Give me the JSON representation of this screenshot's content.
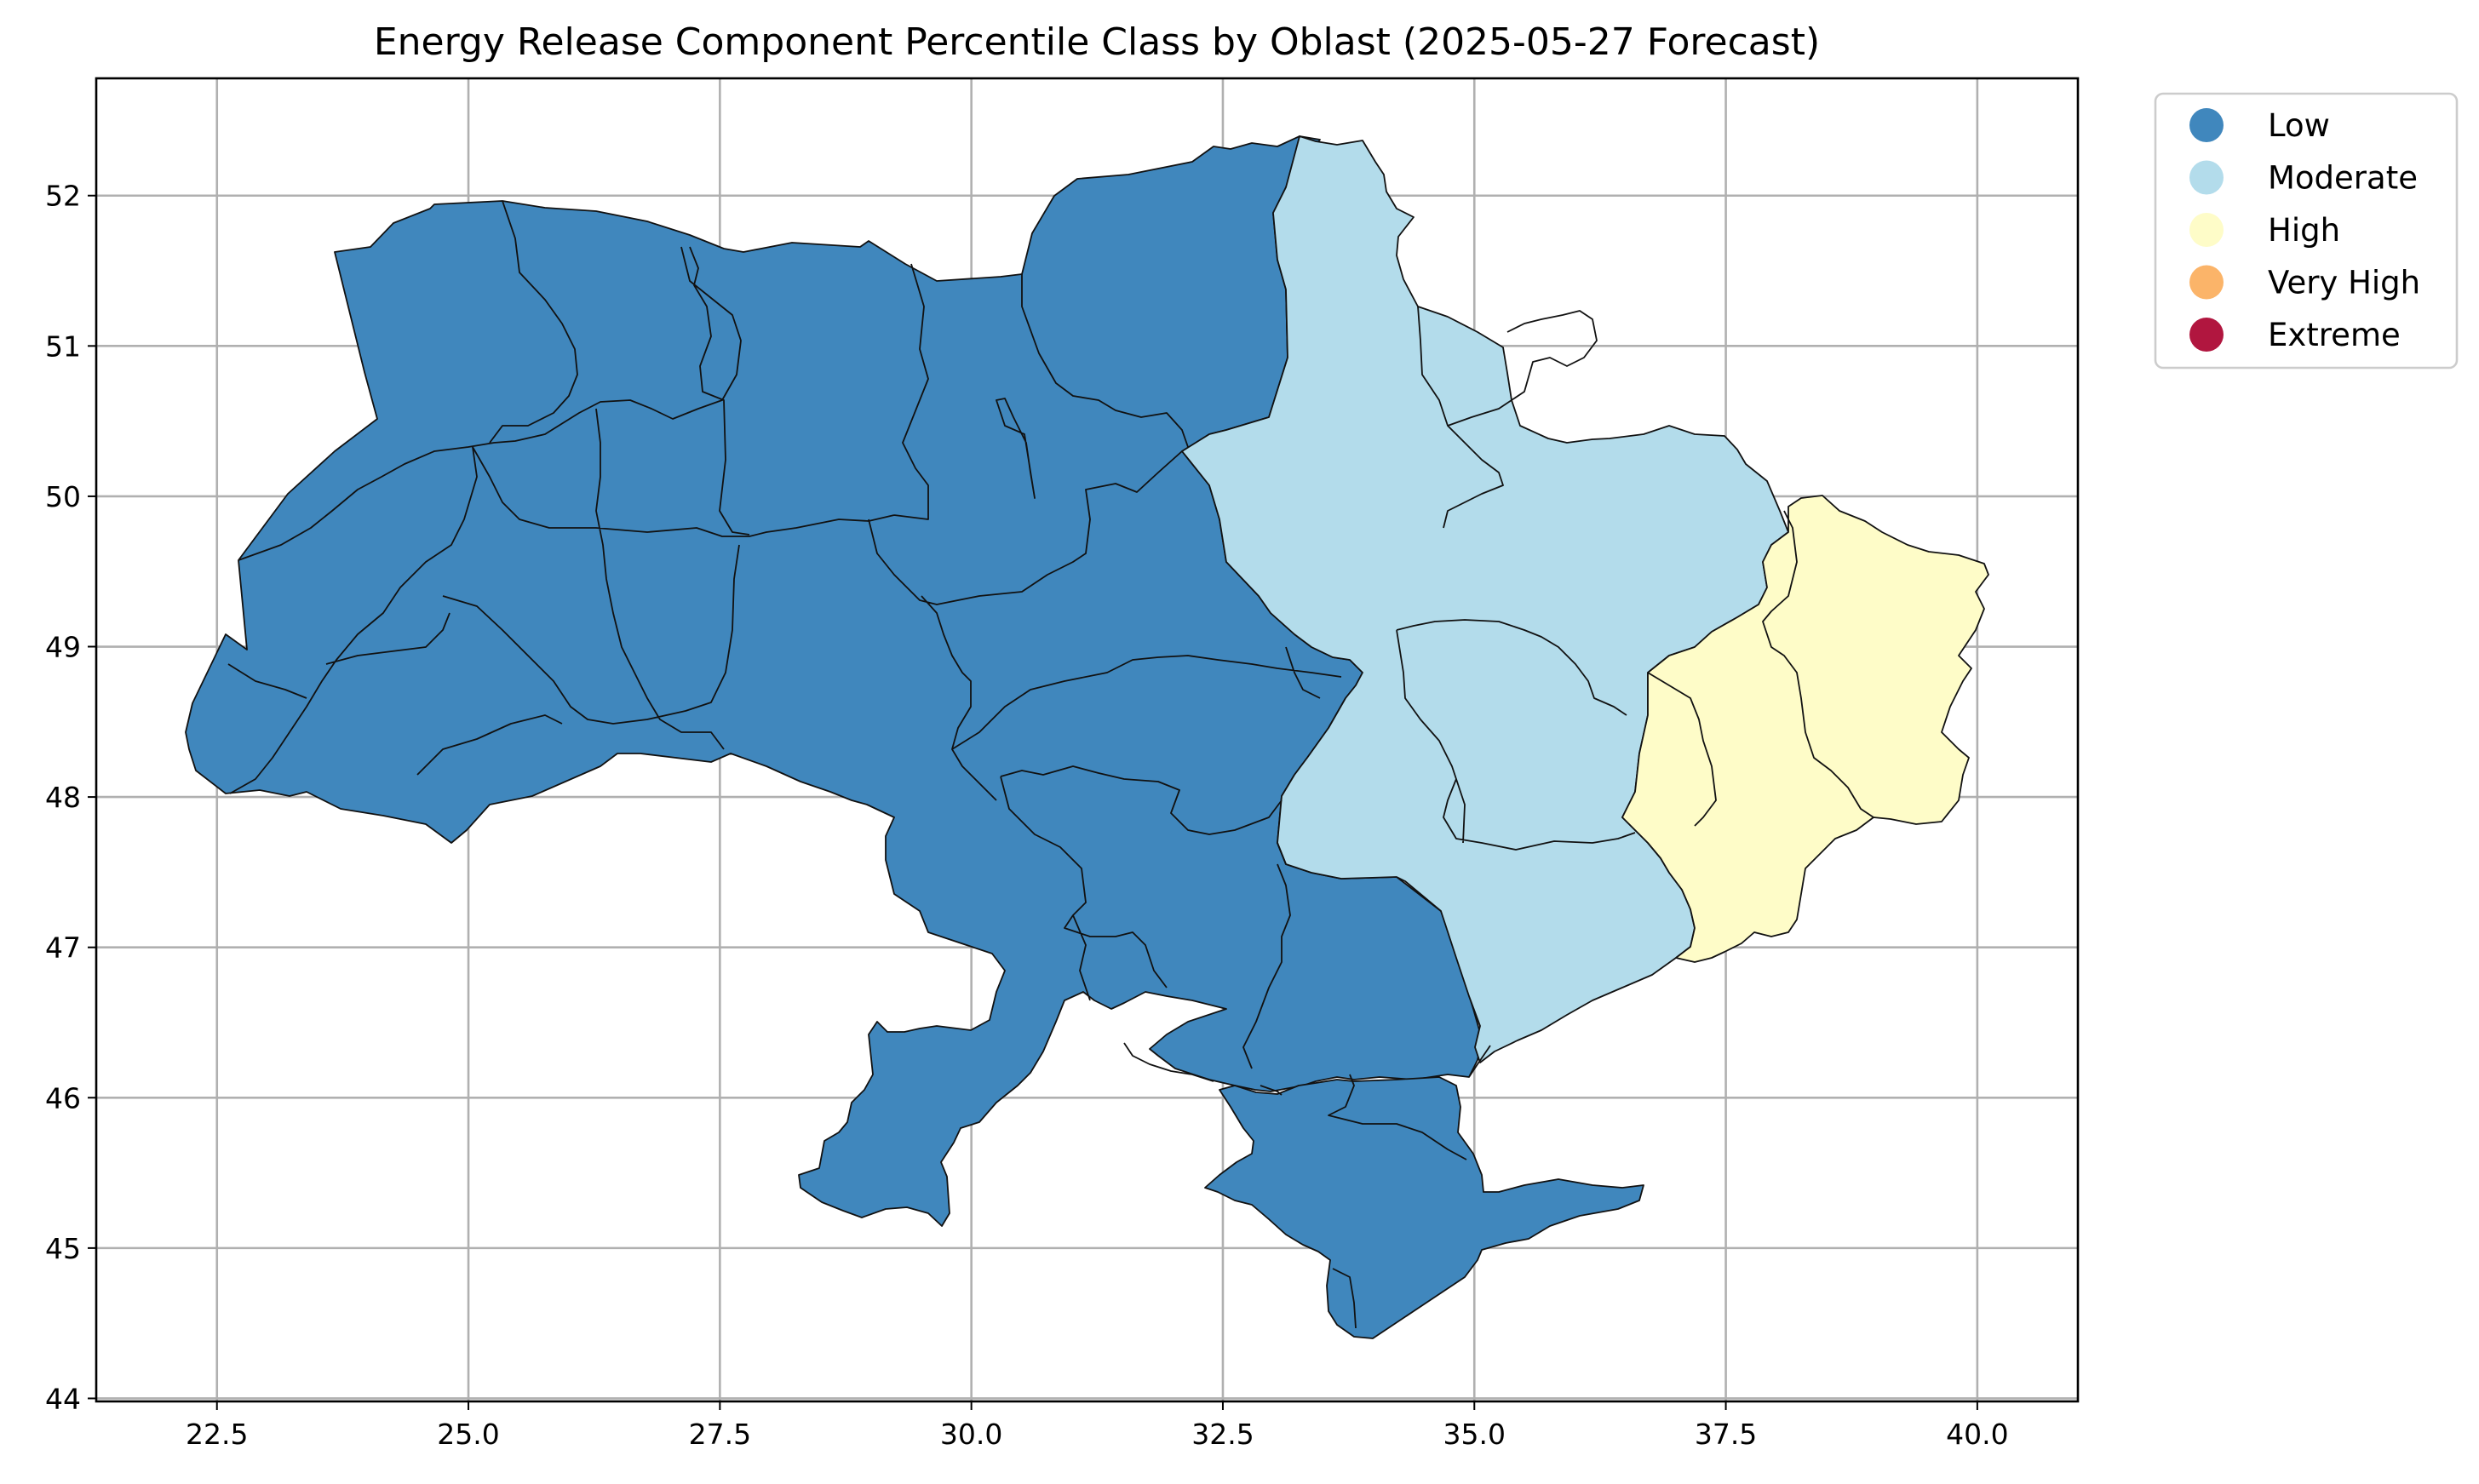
{
  "title": "Energy Release Component Percentile Class by Oblast (2025-05-27 Forecast)",
  "map_data": {
    "type": "choropleth",
    "x_range": [
      21.3,
      41.0
    ],
    "y_range": [
      43.98,
      52.78
    ],
    "x_ticks": [
      "22.5",
      "25.0",
      "27.5",
      "30.0",
      "32.5",
      "35.0",
      "37.5",
      "40.0"
    ],
    "x_tick_values": [
      22.5,
      25.0,
      27.5,
      30.0,
      32.5,
      35.0,
      37.5,
      40.0
    ],
    "y_ticks": [
      "44",
      "45",
      "46",
      "47",
      "48",
      "49",
      "50",
      "51",
      "52"
    ],
    "y_tick_values": [
      44,
      45,
      46,
      47,
      48,
      49,
      50,
      51,
      52
    ],
    "grid": true,
    "legend_position": "outside-top-right",
    "classes": [
      {
        "label": "Low",
        "color": "#4087bd"
      },
      {
        "label": "Moderate",
        "color": "#b3dceb"
      },
      {
        "label": "High",
        "color": "#fefcc8"
      },
      {
        "label": "Very High",
        "color": "#fbb469"
      },
      {
        "label": "Extreme",
        "color": "#b1163f"
      }
    ]
  }
}
